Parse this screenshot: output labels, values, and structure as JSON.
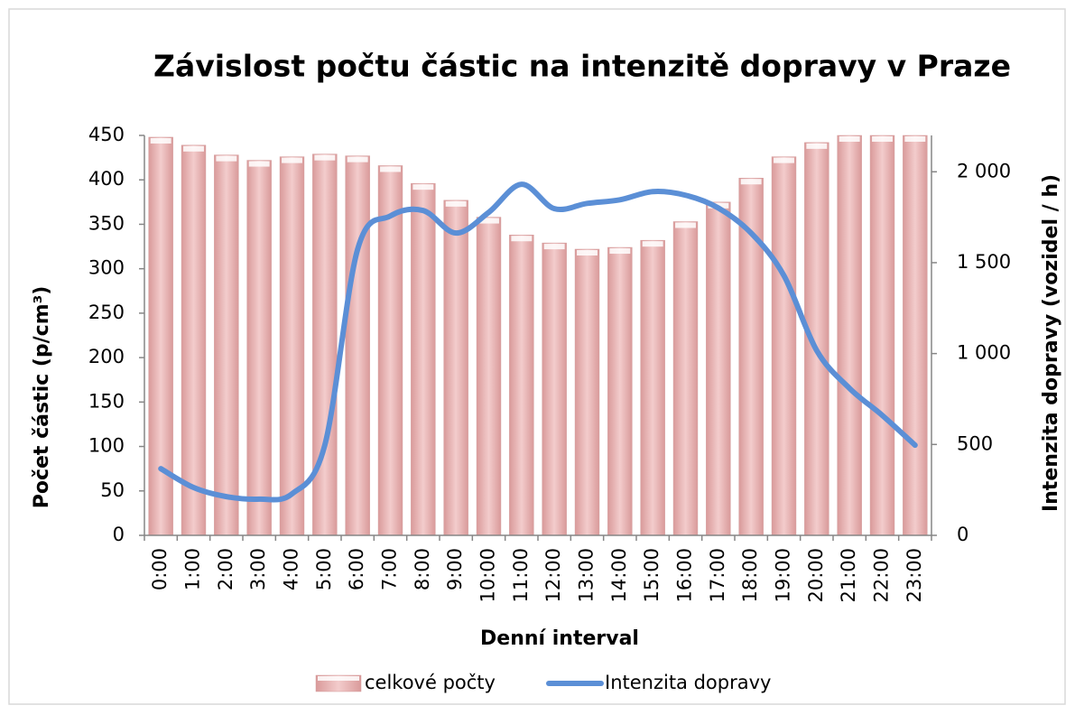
{
  "chart_data": {
    "type": "bar_line",
    "title": "Závislost počtu částic na intenzitě dopravy v Praze",
    "x_label": "Denní interval",
    "y_label": "Počet částic (p/cm³)",
    "y2_label": "Intenzita dopravy (vozidel / h)",
    "categories": [
      "0:00",
      "1:00",
      "2:00",
      "3:00",
      "4:00",
      "5:00",
      "6:00",
      "7:00",
      "8:00",
      "9:00",
      "10:00",
      "11:00",
      "12:00",
      "13:00",
      "14:00",
      "15:00",
      "16:00",
      "17:00",
      "18:00",
      "19:00",
      "20:00",
      "21:00",
      "22:00",
      "23:00"
    ],
    "series": [
      {
        "name": "celkové počty",
        "type": "bar",
        "color": "#e8b4b4",
        "values": [
          448,
          439,
          428,
          422,
          426,
          429,
          427,
          416,
          396,
          377,
          358,
          338,
          329,
          322,
          324,
          332,
          353,
          375,
          402,
          426,
          442,
          450,
          450,
          450
        ]
      },
      {
        "name": "Intenzita dopravy",
        "type": "line",
        "axis": "y2",
        "color": "#5b8fd6",
        "values": [
          367,
          263,
          213,
          199,
          228,
          496,
          1573,
          1757,
          1787,
          1663,
          1777,
          1931,
          1797,
          1826,
          1846,
          1891,
          1871,
          1801,
          1663,
          1429,
          1017,
          809,
          660,
          496
        ]
      }
    ],
    "ylim": [
      0,
      450
    ],
    "yticks": [
      0,
      50,
      100,
      150,
      200,
      250,
      300,
      350,
      400,
      450
    ],
    "y2lim": [
      0,
      2200
    ],
    "y2ticks": [
      0,
      500,
      {
        "value": 1000,
        "label": "1 000"
      },
      {
        "value": 1500,
        "label": "1 500"
      },
      {
        "value": 2000,
        "label": "2 000"
      }
    ],
    "legend": "bottom"
  }
}
